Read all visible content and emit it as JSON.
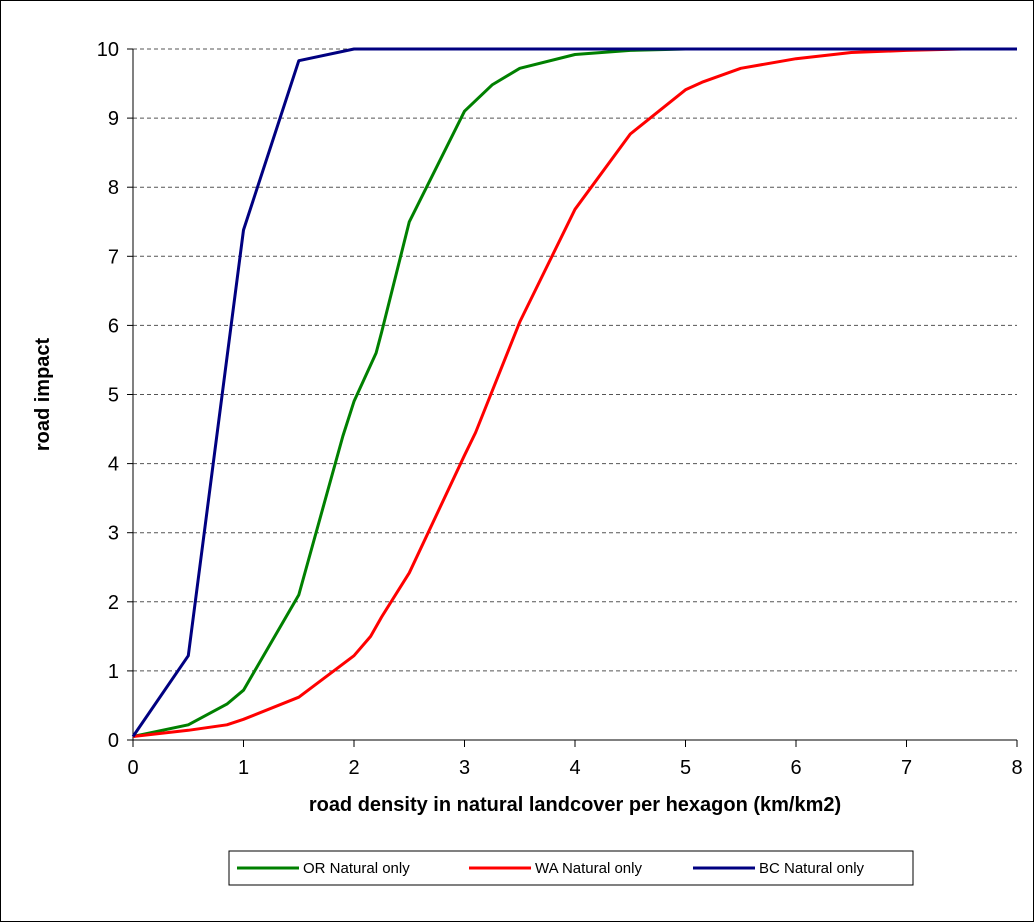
{
  "chart_data": {
    "type": "line",
    "xlabel": "road density in natural landcover per hexagon (km/km2)",
    "ylabel": "road impact",
    "xlim": [
      0,
      8
    ],
    "ylim": [
      0,
      10
    ],
    "xticks": [
      0,
      1,
      2,
      3,
      4,
      5,
      6,
      7,
      8
    ],
    "yticks": [
      0,
      1,
      2,
      3,
      4,
      5,
      6,
      7,
      8,
      9,
      10
    ],
    "grid": "horizontal dashed",
    "legend": "bottom",
    "series": [
      {
        "name": "OR  Natural only",
        "color": "#008000",
        "x": [
          0,
          0.5,
          0.85,
          1.0,
          1.5,
          1.9,
          2.0,
          2.2,
          2.25,
          2.5,
          3.0,
          3.25,
          3.5,
          4.0,
          4.5,
          5.0,
          8.0
        ],
        "y": [
          0.05,
          0.22,
          0.52,
          0.72,
          2.1,
          4.4,
          4.9,
          5.6,
          5.9,
          7.5,
          9.1,
          9.48,
          9.72,
          9.92,
          9.98,
          10.0,
          10.0
        ]
      },
      {
        "name": "WA Natural only",
        "color": "#ff0000",
        "x": [
          0,
          0.5,
          0.85,
          1.0,
          1.5,
          2.0,
          2.15,
          2.25,
          2.5,
          3.0,
          3.1,
          3.5,
          4.0,
          4.5,
          5.0,
          5.15,
          5.5,
          6.0,
          6.5,
          7.0,
          7.5,
          8.0
        ],
        "y": [
          0.05,
          0.14,
          0.22,
          0.3,
          0.62,
          1.22,
          1.5,
          1.78,
          2.42,
          4.12,
          4.45,
          6.05,
          7.68,
          8.77,
          9.41,
          9.52,
          9.72,
          9.86,
          9.95,
          9.98,
          10.0,
          10.0
        ]
      },
      {
        "name": "BC Natural only",
        "color": "#000080",
        "x": [
          0,
          0.5,
          1.0,
          1.5,
          2.0,
          8.0
        ],
        "y": [
          0.05,
          1.22,
          7.38,
          9.83,
          10.0,
          10.0
        ]
      }
    ]
  }
}
